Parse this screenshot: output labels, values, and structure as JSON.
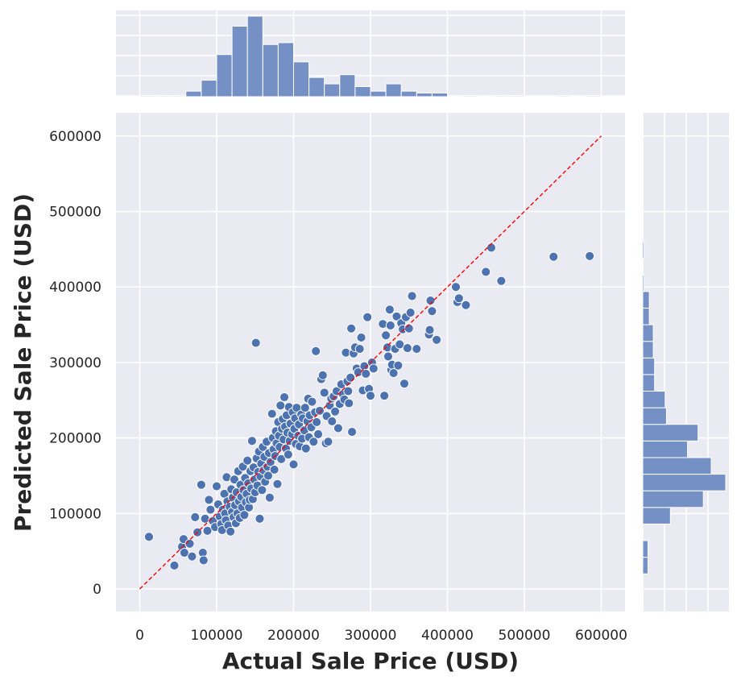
{
  "chart_data": {
    "type": "scatter",
    "subtype": "joint-plot with marginal histograms",
    "xlabel": "Actual Sale Price (USD)",
    "ylabel": "Predicted Sale Price (USD)",
    "xlim": [
      -15000,
      630000
    ],
    "ylim": [
      -30000,
      630000
    ],
    "x_ticks": [
      0,
      100000,
      200000,
      300000,
      400000,
      500000,
      600000
    ],
    "y_ticks": [
      0,
      100000,
      200000,
      300000,
      400000,
      500000,
      600000
    ],
    "x_tick_labels": [
      "0",
      "100000",
      "200000",
      "300000",
      "400000",
      "500000",
      "600000"
    ],
    "y_tick_labels": [
      "0",
      "100000",
      "200000",
      "300000",
      "400000",
      "500000",
      "600000"
    ],
    "grid": true,
    "colors": {
      "points": "#4c72b0",
      "bars": "#7590c4",
      "reference_line": "#ff0000",
      "panel": "#eaeaf2"
    },
    "reference_line": {
      "style": "dashed",
      "from": [
        0,
        0
      ],
      "to": [
        600000,
        600000
      ]
    },
    "points": [
      [
        12000,
        69000
      ],
      [
        45000,
        31000
      ],
      [
        55000,
        56000
      ],
      [
        57000,
        66000
      ],
      [
        58000,
        48000
      ],
      [
        65000,
        60000
      ],
      [
        68000,
        43000
      ],
      [
        72000,
        95000
      ],
      [
        75000,
        75000
      ],
      [
        80000,
        138000
      ],
      [
        82000,
        48000
      ],
      [
        83000,
        38000
      ],
      [
        85000,
        93000
      ],
      [
        88000,
        77000
      ],
      [
        90000,
        118000
      ],
      [
        92000,
        105000
      ],
      [
        95000,
        90000
      ],
      [
        98000,
        82000
      ],
      [
        100000,
        136000
      ],
      [
        102000,
        112000
      ],
      [
        104000,
        96000
      ],
      [
        106000,
        86000
      ],
      [
        107000,
        78000
      ],
      [
        108000,
        105000
      ],
      [
        110000,
        126000
      ],
      [
        111000,
        100000
      ],
      [
        112000,
        91000
      ],
      [
        113000,
        148000
      ],
      [
        114000,
        116000
      ],
      [
        115000,
        84000
      ],
      [
        117000,
        109000
      ],
      [
        118000,
        76000
      ],
      [
        119000,
        132000
      ],
      [
        120000,
        102000
      ],
      [
        121000,
        121000
      ],
      [
        122000,
        95000
      ],
      [
        123000,
        145000
      ],
      [
        124000,
        111000
      ],
      [
        125000,
        87000
      ],
      [
        126000,
        128000
      ],
      [
        127000,
        100000
      ],
      [
        128000,
        156000
      ],
      [
        129000,
        116000
      ],
      [
        130000,
        94000
      ],
      [
        131000,
        138000
      ],
      [
        132000,
        122000
      ],
      [
        133000,
        108000
      ],
      [
        134000,
        162000
      ],
      [
        135000,
        131000
      ],
      [
        136000,
        98000
      ],
      [
        137000,
        147000
      ],
      [
        138000,
        115000
      ],
      [
        139000,
        126000
      ],
      [
        140000,
        170000
      ],
      [
        141000,
        140000
      ],
      [
        142000,
        108000
      ],
      [
        143000,
        118000
      ],
      [
        144000,
        156000
      ],
      [
        145000,
        133000
      ],
      [
        146000,
        196000
      ],
      [
        147000,
        119000
      ],
      [
        148000,
        161000
      ],
      [
        149000,
        145000
      ],
      [
        150000,
        128000
      ],
      [
        151000,
        326000
      ],
      [
        152000,
        173000
      ],
      [
        153000,
        137000
      ],
      [
        154000,
        155000
      ],
      [
        155000,
        182000
      ],
      [
        156000,
        93000
      ],
      [
        157000,
        149000
      ],
      [
        158000,
        166000
      ],
      [
        159000,
        131000
      ],
      [
        160000,
        188000
      ],
      [
        161000,
        157000
      ],
      [
        162000,
        175000
      ],
      [
        163000,
        142000
      ],
      [
        165000,
        195000
      ],
      [
        166000,
        162000
      ],
      [
        167000,
        150000
      ],
      [
        168000,
        180000
      ],
      [
        169000,
        121000
      ],
      [
        170000,
        168000
      ],
      [
        172000,
        232000
      ],
      [
        173000,
        200000
      ],
      [
        174000,
        185000
      ],
      [
        175000,
        158000
      ],
      [
        176000,
        176000
      ],
      [
        177000,
        209000
      ],
      [
        178000,
        193000
      ],
      [
        179000,
        139000
      ],
      [
        180000,
        221000
      ],
      [
        181000,
        203000
      ],
      [
        182000,
        188000
      ],
      [
        183000,
        243000
      ],
      [
        184000,
        172000
      ],
      [
        185000,
        212000
      ],
      [
        186000,
        225000
      ],
      [
        187000,
        198000
      ],
      [
        188000,
        254000
      ],
      [
        189000,
        215000
      ],
      [
        190000,
        186000
      ],
      [
        191000,
        230000
      ],
      [
        192000,
        207000
      ],
      [
        193000,
        178000
      ],
      [
        194000,
        241000
      ],
      [
        195000,
        196000
      ],
      [
        196000,
        219000
      ],
      [
        198000,
        205000
      ],
      [
        199000,
        234000
      ],
      [
        200000,
        165000
      ],
      [
        201000,
        212000
      ],
      [
        202000,
        226000
      ],
      [
        203000,
        192000
      ],
      [
        204000,
        240000
      ],
      [
        206000,
        203000
      ],
      [
        207000,
        218000
      ],
      [
        208000,
        189000
      ],
      [
        210000,
        231000
      ],
      [
        211000,
        199000
      ],
      [
        212000,
        226000
      ],
      [
        214000,
        210000
      ],
      [
        215000,
        240000
      ],
      [
        216000,
        186000
      ],
      [
        218000,
        222000
      ],
      [
        219000,
        252000
      ],
      [
        220000,
        201000
      ],
      [
        221000,
        230000
      ],
      [
        223000,
        214000
      ],
      [
        224000,
        248000
      ],
      [
        226000,
        195000
      ],
      [
        228000,
        234000
      ],
      [
        229000,
        315000
      ],
      [
        230000,
        221000
      ],
      [
        232000,
        205000
      ],
      [
        234000,
        236000
      ],
      [
        236000,
        278000
      ],
      [
        238000,
        283000
      ],
      [
        240000,
        260000
      ],
      [
        242000,
        193000
      ],
      [
        243000,
        229000
      ],
      [
        245000,
        195000
      ],
      [
        247000,
        243000
      ],
      [
        249000,
        252000
      ],
      [
        250000,
        222000
      ],
      [
        252000,
        255000
      ],
      [
        254000,
        235000
      ],
      [
        256000,
        262000
      ],
      [
        258000,
        213000
      ],
      [
        260000,
        245000
      ],
      [
        262000,
        271000
      ],
      [
        264000,
        258000
      ],
      [
        266000,
        251000
      ],
      [
        268000,
        313000
      ],
      [
        270000,
        275000
      ],
      [
        271000,
        262000
      ],
      [
        272000,
        246000
      ],
      [
        274000,
        280000
      ],
      [
        275000,
        345000
      ],
      [
        276000,
        208000
      ],
      [
        278000,
        312000
      ],
      [
        280000,
        320000
      ],
      [
        282000,
        292000
      ],
      [
        284000,
        287000
      ],
      [
        286000,
        318000
      ],
      [
        288000,
        333000
      ],
      [
        290000,
        263000
      ],
      [
        292000,
        295000
      ],
      [
        294000,
        285000
      ],
      [
        296000,
        360000
      ],
      [
        298000,
        265000
      ],
      [
        300000,
        256000
      ],
      [
        302000,
        300000
      ],
      [
        304000,
        292000
      ],
      [
        316000,
        351000
      ],
      [
        318000,
        256000
      ],
      [
        320000,
        336000
      ],
      [
        322000,
        320000
      ],
      [
        323000,
        308000
      ],
      [
        325000,
        370000
      ],
      [
        326000,
        349000
      ],
      [
        327000,
        290000
      ],
      [
        328000,
        297000
      ],
      [
        330000,
        286000
      ],
      [
        332000,
        318000
      ],
      [
        334000,
        361000
      ],
      [
        336000,
        296000
      ],
      [
        338000,
        324000
      ],
      [
        340000,
        352000
      ],
      [
        342000,
        344000
      ],
      [
        344000,
        272000
      ],
      [
        346000,
        360000
      ],
      [
        348000,
        319000
      ],
      [
        350000,
        345000
      ],
      [
        352000,
        366000
      ],
      [
        354000,
        388000
      ],
      [
        360000,
        318000
      ],
      [
        376000,
        337000
      ],
      [
        377000,
        343000
      ],
      [
        378000,
        382000
      ],
      [
        380000,
        368000
      ],
      [
        386000,
        330000
      ],
      [
        411000,
        400000
      ],
      [
        413000,
        380000
      ],
      [
        415000,
        385000
      ],
      [
        424000,
        376000
      ],
      [
        450000,
        420000
      ],
      [
        457000,
        452000
      ],
      [
        470000,
        408000
      ],
      [
        538000,
        440000
      ],
      [
        585000,
        441000
      ]
    ],
    "top_histogram": {
      "bin_edges": [
        0,
        20000,
        40000,
        60000,
        80000,
        100000,
        120000,
        140000,
        160000,
        180000,
        200000,
        220000,
        240000,
        260000,
        280000,
        300000,
        320000,
        340000,
        360000,
        380000,
        400000,
        420000,
        440000,
        460000,
        480000,
        500000,
        520000,
        540000,
        560000,
        580000,
        600000
      ],
      "counts": [
        1,
        1,
        1,
        6,
        18,
        46,
        77,
        88,
        57,
        59,
        38,
        21,
        14,
        24,
        11,
        6,
        14,
        6,
        4,
        4,
        0,
        1,
        0,
        1,
        1,
        0,
        0,
        1,
        0,
        1
      ]
    },
    "right_histogram": {
      "bin_edges": [
        20000,
        42000,
        64000,
        86000,
        108000,
        130000,
        152000,
        174000,
        196000,
        218000,
        240000,
        262000,
        284000,
        306000,
        328000,
        350000,
        372000,
        394000,
        416000,
        438000,
        460000
      ],
      "counts": [
        4,
        4,
        0,
        21,
        46,
        63,
        52,
        34,
        42,
        18,
        17,
        9,
        9,
        8,
        8,
        5,
        5,
        1,
        0,
        1
      ]
    }
  }
}
